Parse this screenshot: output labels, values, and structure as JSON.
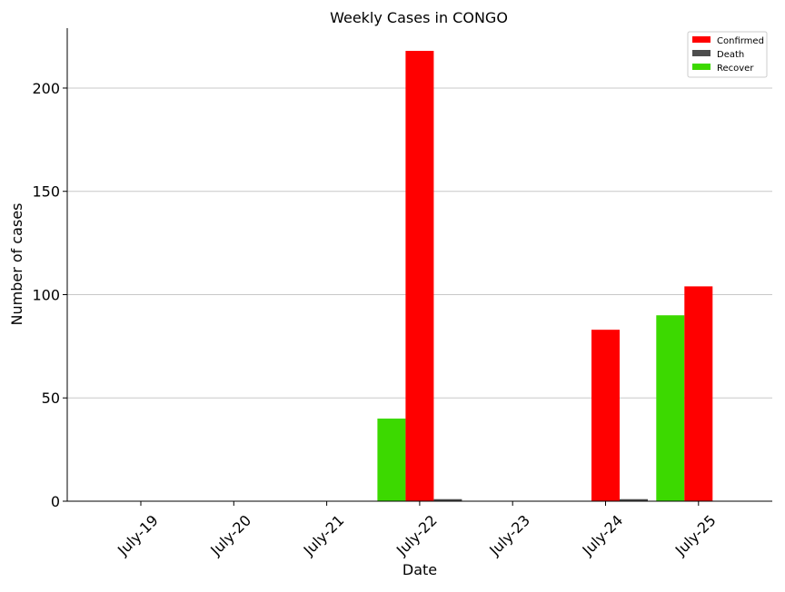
{
  "chart_data": {
    "type": "bar",
    "title": "Weekly Cases in CONGO",
    "xlabel": "Date",
    "ylabel": "Number of cases",
    "categories": [
      "July-19",
      "July-20",
      "July-21",
      "July-22",
      "July-23",
      "July-24",
      "July-25"
    ],
    "series": [
      {
        "name": "Recover",
        "color": "#3cd900",
        "values": [
          0,
          0,
          0,
          40,
          0,
          0,
          90
        ]
      },
      {
        "name": "Confirmed",
        "color": "#ff0000",
        "values": [
          0,
          0,
          0,
          218,
          0,
          83,
          104
        ]
      },
      {
        "name": "Death",
        "color": "#4d4d4d",
        "values": [
          0,
          0,
          0,
          1,
          0,
          1,
          0
        ]
      }
    ],
    "legend_order": [
      "Confirmed",
      "Death",
      "Recover"
    ],
    "legend_position": "top-right",
    "ylim": [
      0,
      229
    ],
    "yticks": [
      0,
      50,
      100,
      150,
      200
    ],
    "grid": "y"
  }
}
